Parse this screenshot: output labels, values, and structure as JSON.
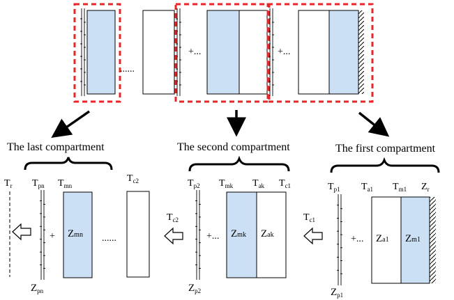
{
  "colors": {
    "panel_fill": "#cce0f5",
    "red_dash": "#e8262a",
    "stroke": "#000000"
  },
  "top": {
    "dots1": "......",
    "plus1": "+...",
    "plus2": "+..."
  },
  "sections": {
    "last": {
      "title": "The last compartment",
      "tr": {
        "main": "T",
        "sub": "r"
      },
      "tpn": {
        "main": "T",
        "sub": "pn"
      },
      "tmn": {
        "main": "T",
        "sub": "mn"
      },
      "tc2": {
        "main": "T",
        "sub": "c2"
      },
      "zmn": {
        "main": "Z",
        "sub": "mn"
      },
      "zpn": {
        "main": "Z",
        "sub": "pn"
      },
      "plus": "+",
      "dots": "......"
    },
    "second": {
      "title": "The second compartment",
      "tc2": {
        "main": "T",
        "sub": "c2"
      },
      "tp2": {
        "main": "T",
        "sub": "p2"
      },
      "tmk": {
        "main": "T",
        "sub": "mk"
      },
      "tak": {
        "main": "T",
        "sub": "ak"
      },
      "tc1": {
        "main": "T",
        "sub": "c1"
      },
      "zmk": {
        "main": "Z",
        "sub": "mk"
      },
      "zak": {
        "main": "Z",
        "sub": "ak"
      },
      "zp2": {
        "main": "Z",
        "sub": "p2"
      },
      "plus": "+..."
    },
    "first": {
      "title": "The first compartment",
      "tc1": {
        "main": "T",
        "sub": "c1"
      },
      "tp1": {
        "main": "T",
        "sub": "p1"
      },
      "ta1": {
        "main": "T",
        "sub": "a1"
      },
      "tm1": {
        "main": "T",
        "sub": "m1"
      },
      "zr": {
        "main": "Z",
        "sub": "r"
      },
      "za1": {
        "main": "Z",
        "sub": "a1"
      },
      "zm1": {
        "main": "Z",
        "sub": "m1"
      },
      "zp1": {
        "main": "Z",
        "sub": "p1"
      },
      "plus": "+..."
    }
  }
}
